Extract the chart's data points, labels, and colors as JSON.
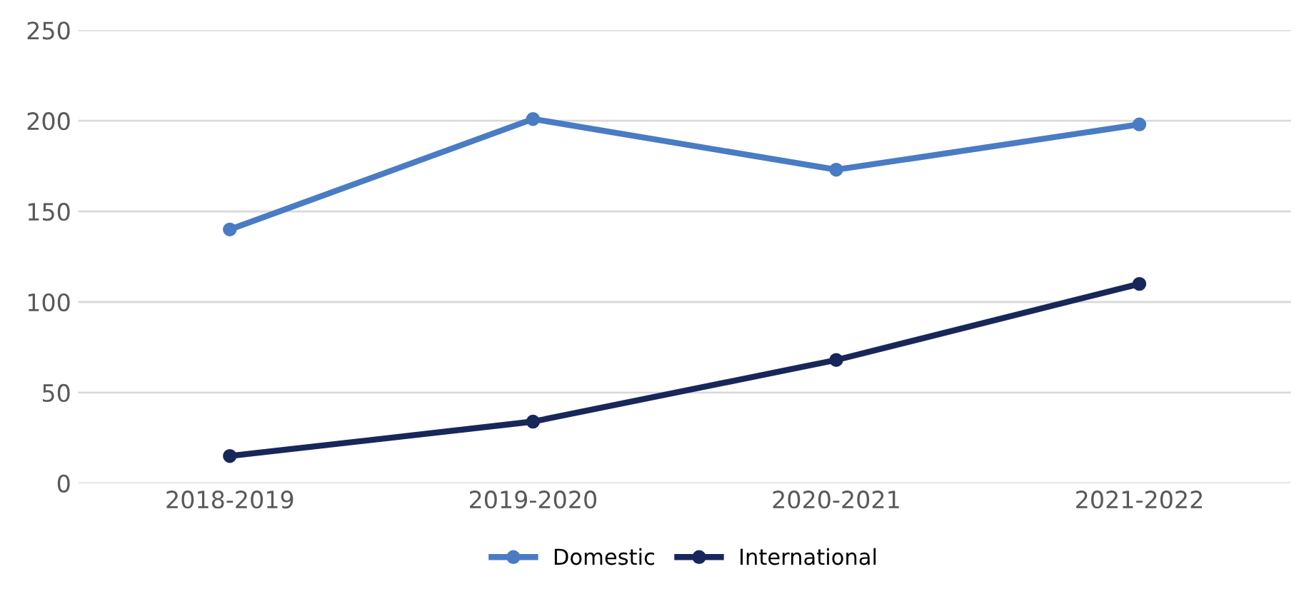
{
  "chart_data": {
    "type": "line",
    "categories": [
      "2018-2019",
      "2019-2020",
      "2020-2021",
      "2021-2022"
    ],
    "series": [
      {
        "name": "Domestic",
        "color": "#4a7cc4",
        "values": [
          140,
          201,
          173,
          198
        ]
      },
      {
        "name": "International",
        "color": "#18275a",
        "values": [
          15,
          34,
          68,
          110
        ]
      }
    ],
    "ylim": [
      0,
      250
    ],
    "yticks": [
      0,
      50,
      100,
      150,
      200,
      250
    ],
    "grid": "y",
    "legend": "bottom",
    "marker": "circle",
    "line_style": "solid"
  }
}
